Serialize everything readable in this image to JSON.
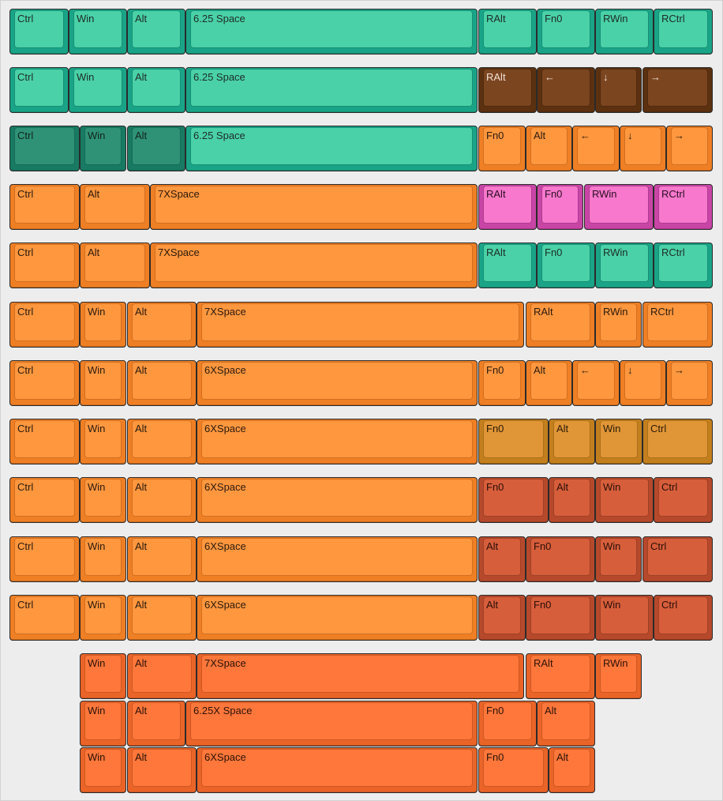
{
  "colors": {
    "teal": {
      "base": "#1aa487",
      "top": "#4ad1a7",
      "text": "#1e2b27"
    },
    "dark_teal": {
      "base": "#187a62",
      "top": "#2f9276",
      "text": "#10241d"
    },
    "brown": {
      "base": "#5c3110",
      "top": "#7b4520",
      "text": "#f1e2d4"
    },
    "orange": {
      "base": "#ef7f24",
      "top": "#ff973f",
      "text": "#2a1a0c"
    },
    "pink": {
      "base": "#c845a6",
      "top": "#f778cc",
      "text": "#2a0f22"
    },
    "mustard": {
      "base": "#c37f1d",
      "top": "#e09637",
      "text": "#2a1b08"
    },
    "rust": {
      "base": "#b6492b",
      "top": "#d75e3b",
      "text": "#2a0f08"
    },
    "bright_orange": {
      "base": "#ea6428",
      "top": "#ff773a",
      "text": "#2a1208"
    }
  },
  "rows": [
    {
      "keys": [
        {
          "label": "Ctrl",
          "color": "teal"
        },
        {
          "label": "Win",
          "color": "teal"
        },
        {
          "label": "Alt",
          "color": "teal"
        },
        {
          "label": "6.25 Space",
          "color": "teal"
        },
        {
          "label": "RAlt",
          "color": "teal"
        },
        {
          "label": "Fn0",
          "color": "teal"
        },
        {
          "label": "RWin",
          "color": "teal"
        },
        {
          "label": "RCtrl",
          "color": "teal"
        }
      ]
    },
    {
      "keys": [
        {
          "label": "Ctrl",
          "color": "teal"
        },
        {
          "label": "Win",
          "color": "teal"
        },
        {
          "label": "Alt",
          "color": "teal"
        },
        {
          "label": "6.25 Space",
          "color": "teal"
        },
        {
          "label": "RAlt",
          "color": "brown"
        },
        {
          "label": "←",
          "color": "brown"
        },
        {
          "label": "↓",
          "color": "brown"
        },
        {
          "label": "→",
          "color": "brown"
        }
      ]
    },
    {
      "keys": [
        {
          "label": "Ctrl",
          "color": "dark_teal"
        },
        {
          "label": "Win",
          "color": "dark_teal"
        },
        {
          "label": "Alt",
          "color": "dark_teal"
        },
        {
          "label": "6.25 Space",
          "color": "teal"
        },
        {
          "label": "Fn0",
          "color": "orange"
        },
        {
          "label": "Alt",
          "color": "orange"
        },
        {
          "label": "←",
          "color": "orange"
        },
        {
          "label": "↓",
          "color": "orange"
        },
        {
          "label": "→",
          "color": "orange"
        }
      ]
    },
    {
      "keys": [
        {
          "label": "Ctrl",
          "color": "orange"
        },
        {
          "label": "Alt",
          "color": "orange"
        },
        {
          "label": "7XSpace",
          "color": "orange"
        },
        {
          "label": "RAlt",
          "color": "pink"
        },
        {
          "label": "Fn0",
          "color": "pink"
        },
        {
          "label": "RWin",
          "color": "pink"
        },
        {
          "label": "RCtrl",
          "color": "pink"
        }
      ]
    },
    {
      "keys": [
        {
          "label": "Ctrl",
          "color": "orange"
        },
        {
          "label": "Alt",
          "color": "orange"
        },
        {
          "label": "7XSpace",
          "color": "orange"
        },
        {
          "label": "RAlt",
          "color": "teal"
        },
        {
          "label": "Fn0",
          "color": "teal"
        },
        {
          "label": "RWin",
          "color": "teal"
        },
        {
          "label": "RCtrl",
          "color": "teal"
        }
      ]
    },
    {
      "keys": [
        {
          "label": "Ctrl",
          "color": "orange"
        },
        {
          "label": "Win",
          "color": "orange"
        },
        {
          "label": "Alt",
          "color": "orange"
        },
        {
          "label": "7XSpace",
          "color": "orange"
        },
        {
          "label": "RAlt",
          "color": "orange"
        },
        {
          "label": "RWin",
          "color": "orange"
        },
        {
          "label": "RCtrl",
          "color": "orange"
        }
      ]
    },
    {
      "keys": [
        {
          "label": "Ctrl",
          "color": "orange"
        },
        {
          "label": "Win",
          "color": "orange"
        },
        {
          "label": "Alt",
          "color": "orange"
        },
        {
          "label": "6XSpace",
          "color": "orange"
        },
        {
          "label": "Fn0",
          "color": "orange"
        },
        {
          "label": "Alt",
          "color": "orange"
        },
        {
          "label": "←",
          "color": "orange"
        },
        {
          "label": "↓",
          "color": "orange"
        },
        {
          "label": "→",
          "color": "orange"
        }
      ]
    },
    {
      "keys": [
        {
          "label": "Ctrl",
          "color": "orange"
        },
        {
          "label": "Win",
          "color": "orange"
        },
        {
          "label": "Alt",
          "color": "orange"
        },
        {
          "label": "6XSpace",
          "color": "orange"
        },
        {
          "label": "Fn0",
          "color": "mustard"
        },
        {
          "label": "Alt",
          "color": "mustard"
        },
        {
          "label": "Win",
          "color": "mustard"
        },
        {
          "label": "Ctrl",
          "color": "mustard"
        }
      ]
    },
    {
      "keys": [
        {
          "label": "Ctrl",
          "color": "orange"
        },
        {
          "label": "Win",
          "color": "orange"
        },
        {
          "label": "Alt",
          "color": "orange"
        },
        {
          "label": "6XSpace",
          "color": "orange"
        },
        {
          "label": "Fn0",
          "color": "rust"
        },
        {
          "label": "Alt",
          "color": "rust"
        },
        {
          "label": "Win",
          "color": "rust"
        },
        {
          "label": "Ctrl",
          "color": "rust"
        }
      ]
    },
    {
      "keys": [
        {
          "label": "Ctrl",
          "color": "orange"
        },
        {
          "label": "Win",
          "color": "orange"
        },
        {
          "label": "Alt",
          "color": "orange"
        },
        {
          "label": "6XSpace",
          "color": "orange"
        },
        {
          "label": "Alt",
          "color": "rust"
        },
        {
          "label": "Fn0",
          "color": "rust"
        },
        {
          "label": "Win",
          "color": "rust"
        },
        {
          "label": "Ctrl",
          "color": "rust"
        }
      ]
    },
    {
      "keys": [
        {
          "label": "Ctrl",
          "color": "orange"
        },
        {
          "label": "Win",
          "color": "orange"
        },
        {
          "label": "Alt",
          "color": "orange"
        },
        {
          "label": "6XSpace",
          "color": "orange"
        },
        {
          "label": "Alt",
          "color": "rust"
        },
        {
          "label": "Fn0",
          "color": "rust"
        },
        {
          "label": "Win",
          "color": "rust"
        },
        {
          "label": "Ctrl",
          "color": "rust"
        }
      ]
    },
    {
      "keys": [
        {
          "label": "Win",
          "color": "bright_orange"
        },
        {
          "label": "Alt",
          "color": "bright_orange"
        },
        {
          "label": "7XSpace",
          "color": "bright_orange"
        },
        {
          "label": "RAlt",
          "color": "bright_orange"
        },
        {
          "label": "RWin",
          "color": "bright_orange"
        }
      ]
    },
    {
      "keys": [
        {
          "label": "Win",
          "color": "bright_orange"
        },
        {
          "label": "Alt",
          "color": "bright_orange"
        },
        {
          "label": "6.25X Space",
          "color": "bright_orange"
        },
        {
          "label": "Fn0",
          "color": "bright_orange"
        },
        {
          "label": "Alt",
          "color": "bright_orange"
        }
      ]
    },
    {
      "keys": [
        {
          "label": "Win",
          "color": "bright_orange"
        },
        {
          "label": "Alt",
          "color": "bright_orange"
        },
        {
          "label": "6XSpace",
          "color": "bright_orange"
        },
        {
          "label": "Fn0",
          "color": "bright_orange"
        },
        {
          "label": "Alt",
          "color": "bright_orange"
        }
      ]
    }
  ]
}
